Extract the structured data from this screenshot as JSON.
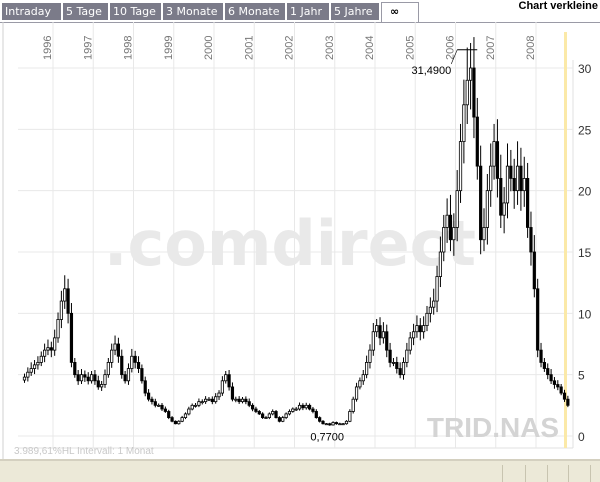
{
  "tabs": [
    {
      "label": "Intraday"
    },
    {
      "label": "5 Tage"
    },
    {
      "label": "10 Tage"
    },
    {
      "label": "3 Monate"
    },
    {
      "label": "6 Monate"
    },
    {
      "label": "1 Jahr"
    },
    {
      "label": "5 Jahre"
    },
    {
      "label": "∞",
      "active": true
    }
  ],
  "header": {
    "title": "Chart verkleine"
  },
  "status": "3.989,61%HL  Intervall: 1 Monat",
  "watermark": ".comdirect",
  "symbol": "TRID.NAS",
  "colors": {
    "tab_bg": "#7b7b89",
    "grid": "#e8e8e8",
    "highlight": "#fbe9a8",
    "watermark": "#f6d9a8"
  },
  "chart_data": {
    "type": "candlestick",
    "interval": "1 Monat",
    "x_ticks": [
      "1996",
      "1997",
      "1998",
      "1999",
      "2000",
      "2001",
      "2002",
      "2003",
      "2004",
      "2005",
      "2006",
      "2007",
      "2008"
    ],
    "y_ticks": [
      0,
      5,
      10,
      15,
      20,
      25,
      30
    ],
    "ylim": [
      0,
      30
    ],
    "grid": true,
    "y_axis_position": "right",
    "start": "1995-04",
    "closes": [
      4.8,
      5.2,
      5.5,
      5.8,
      6.0,
      6.5,
      7.0,
      7.2,
      7.0,
      8,
      9.5,
      11,
      12,
      10,
      6,
      5,
      4.5,
      5,
      4.8,
      4.5,
      5,
      4.5,
      4,
      4.2,
      5,
      6,
      7,
      7.5,
      6.5,
      5,
      4.5,
      5.5,
      6.5,
      6,
      5.5,
      4.5,
      3.5,
      3,
      2.8,
      2.5,
      2.5,
      2.2,
      2,
      1.5,
      1.2,
      1,
      1.2,
      1.5,
      1.8,
      2.2,
      2.5,
      2.5,
      2.8,
      2.8,
      3,
      3,
      2.8,
      3.2,
      3.5,
      4.5,
      5,
      4,
      3,
      3,
      2.8,
      3,
      2.8,
      2.5,
      2.2,
      2,
      1.8,
      1.5,
      1.5,
      1.8,
      2,
      1.5,
      1.2,
      1.5,
      1.8,
      2,
      2.2,
      2.2,
      2.5,
      2.3,
      2.5,
      2.2,
      2,
      1.5,
      1.2,
      1,
      1,
      0.9,
      1.1,
      1,
      1,
      1,
      1.2,
      2,
      3,
      4,
      4.5,
      5,
      6,
      7,
      8.5,
      9,
      8,
      8.5,
      7,
      6,
      6,
      5.5,
      5,
      6,
      7,
      8,
      8.5,
      9,
      8.5,
      9,
      10,
      10.5,
      11,
      13,
      15,
      17,
      18,
      16,
      17,
      20,
      24,
      27,
      29,
      30,
      26,
      22,
      16,
      17,
      20,
      22,
      24,
      21,
      18,
      19,
      22,
      21,
      20,
      22,
      20,
      21,
      17,
      15,
      12,
      7,
      6,
      5.5,
      5,
      4.5,
      4.2,
      4,
      3.5,
      3,
      2.5
    ],
    "annotations": [
      {
        "label": "31,4900",
        "value": 31.49,
        "date": "2006-04"
      },
      {
        "label": "0,7700",
        "value": 0.77,
        "date": "2002-10"
      }
    ]
  }
}
